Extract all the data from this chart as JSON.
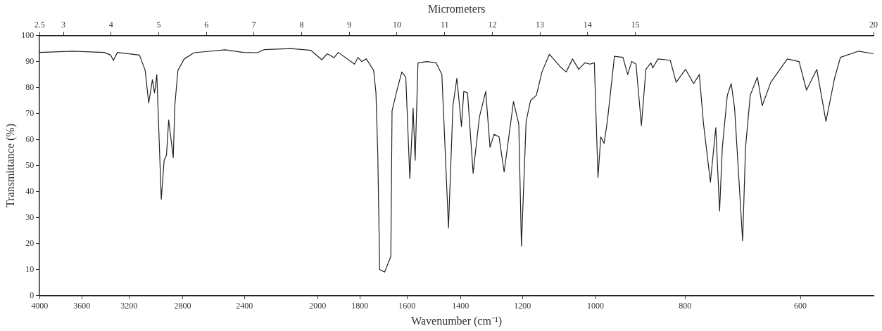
{
  "chart_data": {
    "type": "line",
    "xlabel": "Wavenumber (cm⁻¹)",
    "ylabel": "Transmittance (%)",
    "x2label": "Micrometers",
    "x": [
      4000,
      3682,
      3405,
      3350,
      3328,
      3294,
      3118,
      3074,
      3047,
      3019,
      3003,
      2986,
      2953,
      2932,
      2915,
      2899,
      2882,
      2866,
      2855,
      2833,
      2789,
      2721,
      2518,
      2406,
      2324,
      2284,
      2138,
      2033,
      1979,
      1952,
      1920,
      1899,
      1824,
      1808,
      1792,
      1771,
      1739,
      1729,
      1721,
      1713,
      1692,
      1666,
      1661,
      1642,
      1621,
      1605,
      1589,
      1576,
      1568,
      1557,
      1523,
      1488,
      1467,
      1456,
      1443,
      1427,
      1413,
      1397,
      1389,
      1376,
      1357,
      1336,
      1315,
      1301,
      1288,
      1272,
      1256,
      1227,
      1211,
      1203,
      1189,
      1176,
      1159,
      1143,
      1122,
      1092,
      1076,
      1059,
      1043,
      1027,
      1014,
      1003,
      994,
      987,
      979,
      971,
      954,
      934,
      923,
      914,
      904,
      892,
      882,
      871,
      867,
      856,
      830,
      818,
      799,
      783,
      772,
      764,
      751,
      741,
      734,
      729,
      720,
      713,
      707,
      693,
      688,
      680,
      668,
      660,
      646,
      620,
      602,
      591,
      576,
      563,
      551,
      543,
      519,
      500
    ],
    "values": [
      93.5,
      94,
      93.5,
      92.5,
      90.4,
      93.5,
      92.5,
      86.6,
      74,
      83,
      78,
      85,
      37,
      52,
      54,
      67.5,
      60,
      53,
      73,
      86.6,
      91,
      93.4,
      94.5,
      93.5,
      93.4,
      94.6,
      95,
      94.3,
      90.7,
      93,
      91.5,
      93.5,
      89,
      91.6,
      90,
      91,
      86.6,
      78,
      54,
      10,
      9,
      15,
      71,
      78.5,
      86,
      84,
      45,
      72,
      52,
      89.5,
      90,
      89.5,
      85,
      58.5,
      26,
      73,
      83.6,
      65,
      78.5,
      78,
      47,
      68.6,
      78.5,
      57,
      62,
      61,
      47.5,
      74.6,
      66,
      19,
      67,
      75,
      77,
      86,
      92.8,
      88,
      86,
      91,
      87,
      89.5,
      89,
      89.5,
      45.4,
      61,
      58.5,
      67,
      92,
      91.6,
      85,
      90,
      89,
      65.4,
      87,
      89.5,
      87.5,
      91,
      90.5,
      82,
      87,
      81.5,
      85,
      66,
      43.6,
      64.5,
      32.5,
      57,
      77,
      81.5,
      72,
      21,
      57,
      77,
      84,
      73,
      82,
      91,
      90,
      79,
      87,
      67,
      83.6,
      91.6,
      94,
      93
    ],
    "color": "#222222",
    "xlim": [
      4000,
      500
    ],
    "xticks": [
      4000,
      3600,
      3200,
      2800,
      2400,
      2000,
      1800,
      1600,
      1400,
      1200,
      1000,
      800,
      600
    ],
    "x2lim": [
      2.5,
      20
    ],
    "x2ticks": [
      2.5,
      3,
      4,
      5,
      6,
      7,
      8,
      9,
      10,
      11,
      12,
      13,
      14,
      15,
      20
    ],
    "log": "x",
    "ylim": [
      0,
      100
    ],
    "yticks": [
      0,
      10,
      20,
      30,
      40,
      50,
      60,
      70,
      80,
      90,
      100
    ],
    "grid": false,
    "legend": false,
    "marker": "none",
    "line_style": "solid"
  }
}
